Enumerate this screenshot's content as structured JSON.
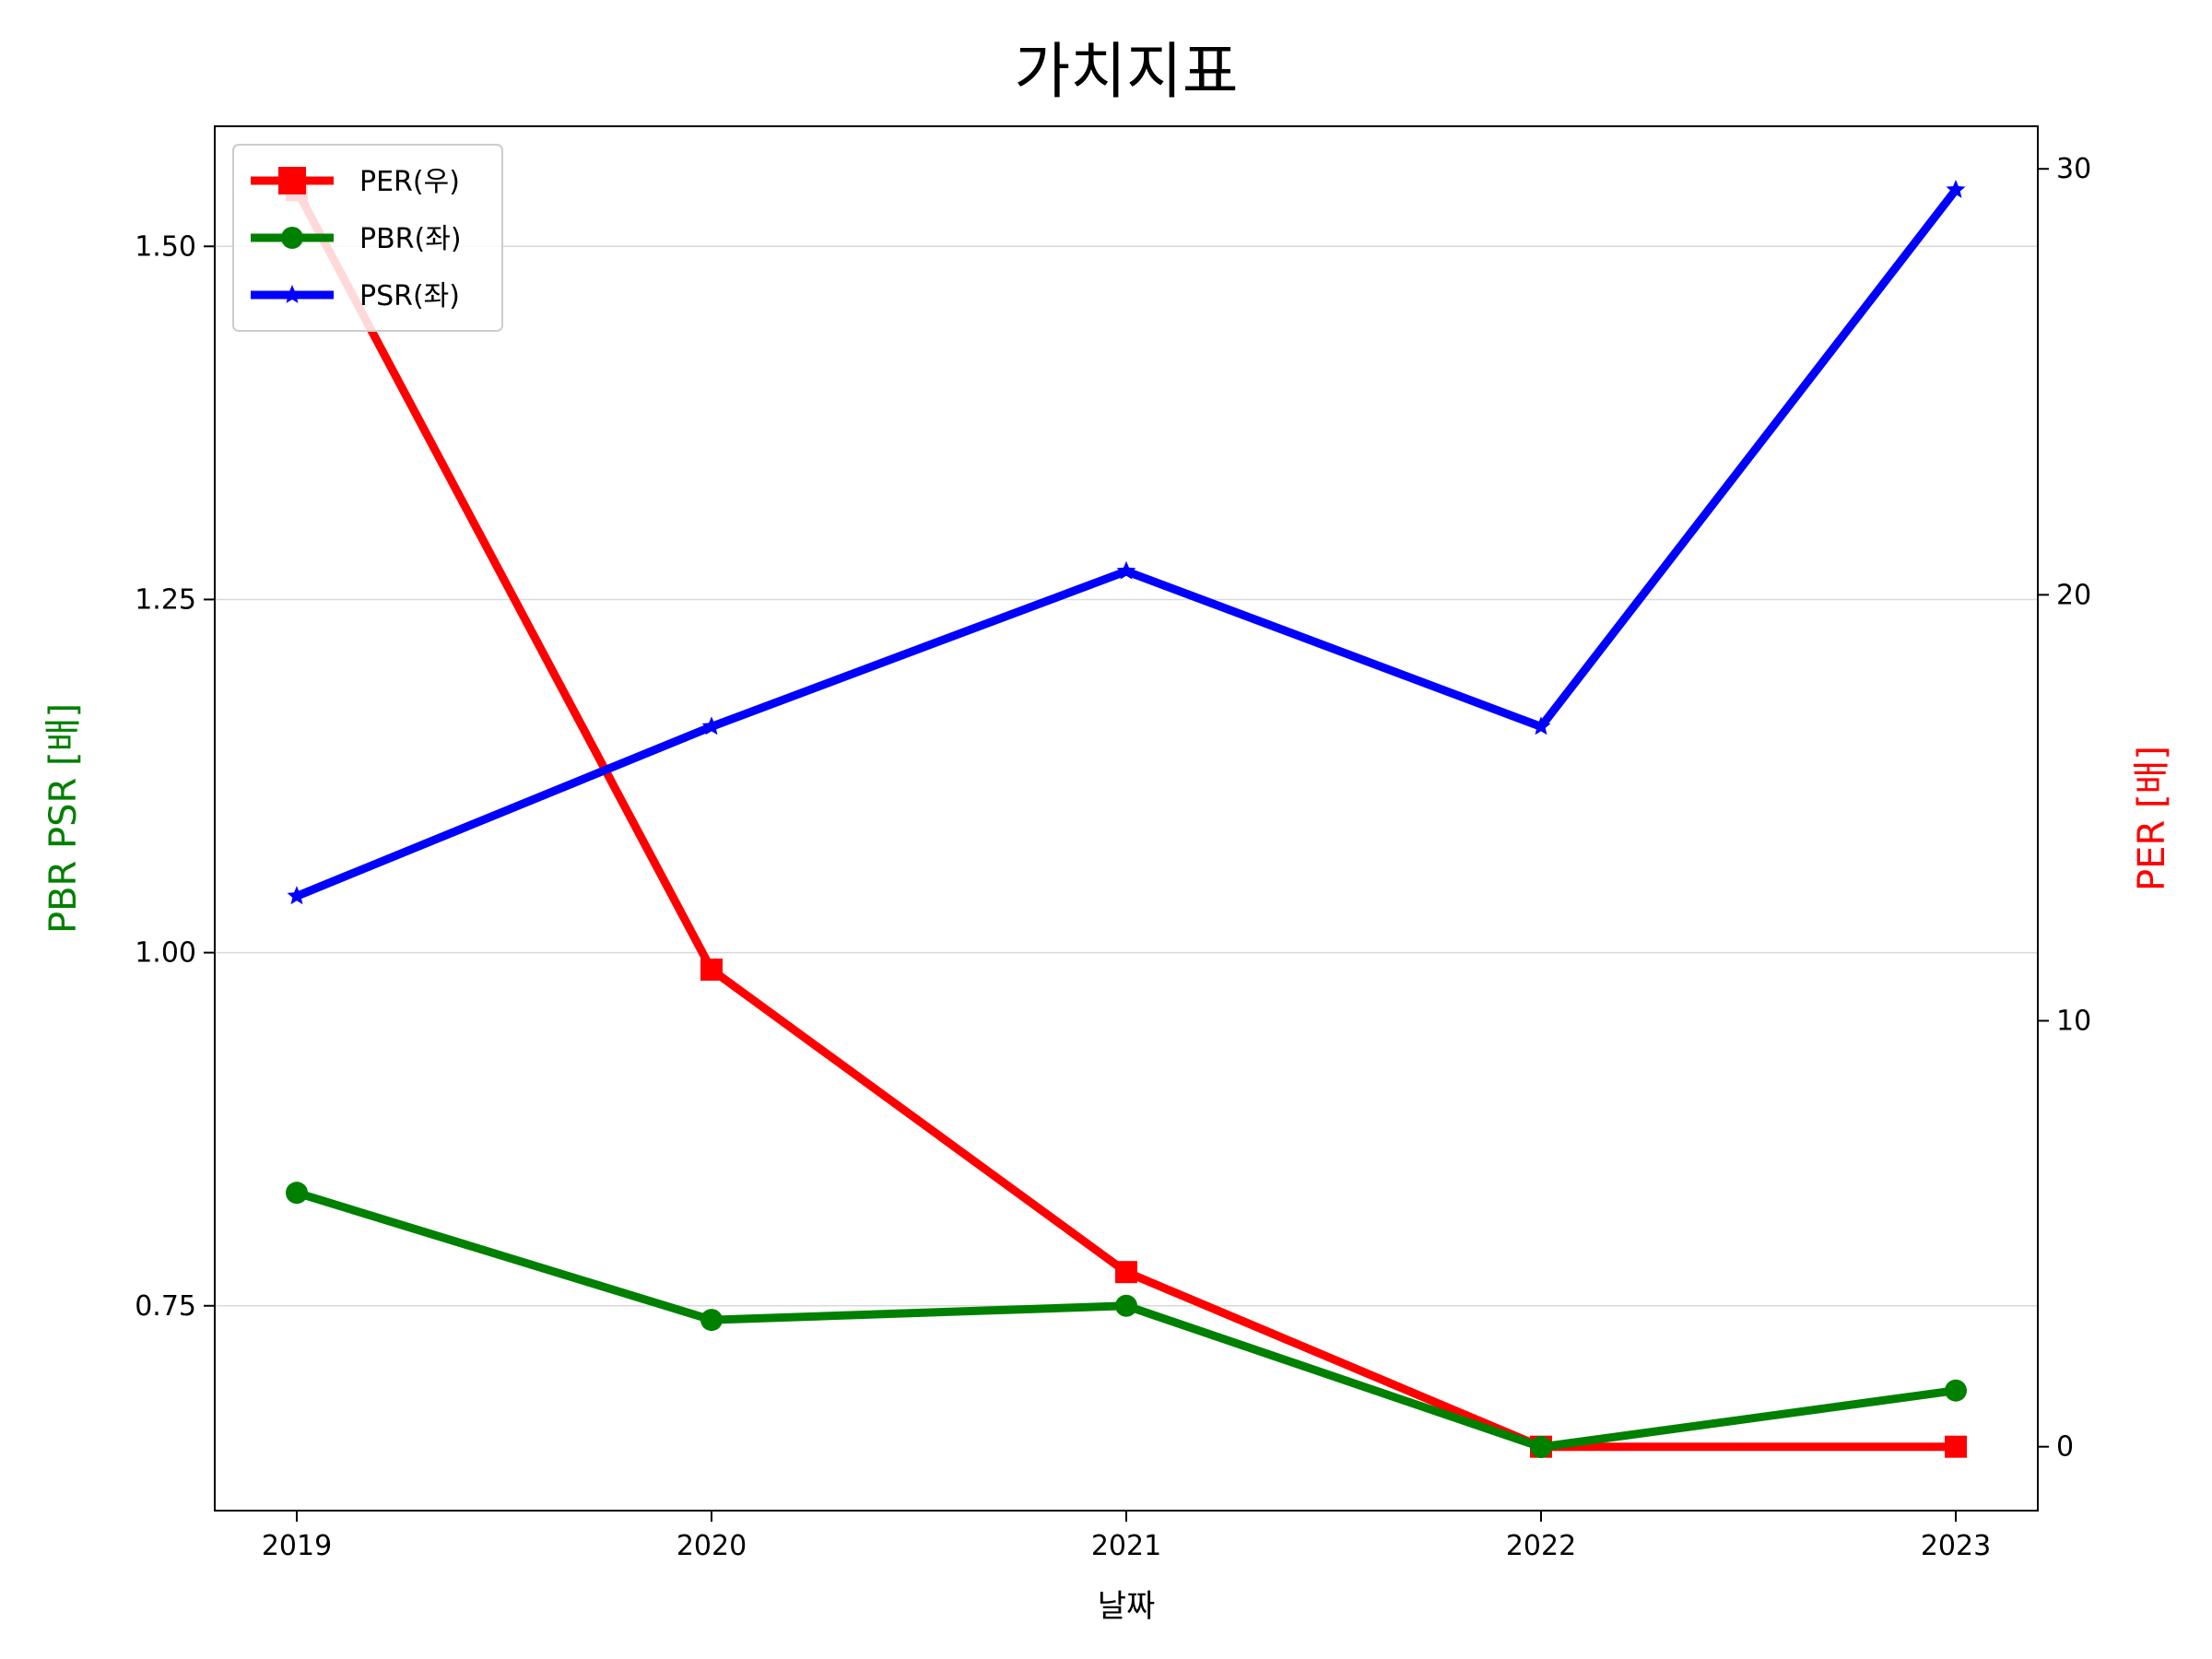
{
  "chart_data": {
    "type": "line",
    "title": "가치지표",
    "xlabel": "날짜",
    "ylabel_left": "PBR PSR [배]",
    "ylabel_right": "PER [배]",
    "categories": [
      "2019",
      "2020",
      "2021",
      "2022",
      "2023"
    ],
    "left_axis": {
      "ylim": [
        0.605,
        1.585
      ],
      "ticks": [
        0.75,
        1.0,
        1.25,
        1.5
      ],
      "tick_labels": [
        "0.75",
        "1.00",
        "1.25",
        "1.50"
      ],
      "grid": true
    },
    "right_axis": {
      "ylim": [
        -1.5,
        31.0
      ],
      "ticks": [
        0,
        10,
        20,
        30
      ],
      "tick_labels": [
        "0",
        "10",
        "20",
        "30"
      ]
    },
    "series": [
      {
        "name": "PER(우)",
        "axis": "right",
        "color": "#ff0000",
        "marker": "square",
        "values": [
          29.5,
          11.2,
          4.1,
          0.0,
          0.0
        ]
      },
      {
        "name": "PBR(좌)",
        "axis": "left",
        "color": "#008000",
        "marker": "circle",
        "values": [
          0.83,
          0.74,
          0.75,
          0.65,
          0.69
        ]
      },
      {
        "name": "PSR(좌)",
        "axis": "left",
        "color": "#0000ff",
        "marker": "star",
        "values": [
          1.04,
          1.16,
          1.27,
          1.16,
          1.54
        ]
      }
    ],
    "legend_position": "top-left"
  }
}
